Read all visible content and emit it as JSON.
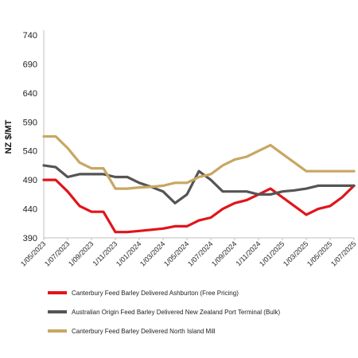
{
  "chart_data": {
    "type": "line",
    "title": "",
    "xlabel": "",
    "ylabel": "NZ $/MT",
    "ylim": [
      390,
      740
    ],
    "yticks": [
      390,
      440,
      490,
      540,
      590,
      640,
      690,
      740
    ],
    "grid": false,
    "legend_position": "bottom",
    "x_tick_labels": [
      "1/05/2023",
      "1/07/2023",
      "1/09/2023",
      "1/11/2023",
      "1/01/2024",
      "1/03/2024",
      "1/05/2024",
      "1/07/2024",
      "1/09/2024",
      "1/11/2024",
      "1/01/2025",
      "1/03/2025",
      "1/05/2025",
      "1/07/2025"
    ],
    "x": [
      "1/05/2023",
      "1/06/2023",
      "1/07/2023",
      "1/08/2023",
      "1/09/2023",
      "1/10/2023",
      "1/11/2023",
      "1/12/2023",
      "1/01/2024",
      "1/02/2024",
      "1/03/2024",
      "1/04/2024",
      "1/05/2024",
      "1/06/2024",
      "1/07/2024",
      "1/08/2024",
      "1/09/2024",
      "1/10/2024",
      "1/11/2024",
      "1/12/2024",
      "1/01/2025",
      "1/02/2025",
      "1/03/2025",
      "1/04/2025",
      "1/05/2025",
      "1/06/2025",
      "1/07/2025"
    ],
    "series": [
      {
        "name": "Canterbury Feed Barley Delivered Ashburton (Free Pricing)",
        "color": "#e0151b",
        "values": [
          490,
          490,
          470,
          445,
          435,
          435,
          400,
          400,
          402,
          404,
          406,
          410,
          410,
          420,
          425,
          440,
          450,
          455,
          465,
          475,
          460,
          445,
          430,
          440,
          445,
          460,
          480
        ]
      },
      {
        "name": "Australian Origin Feed Barley Delivered New Zealand Port Terminal (Bulk)",
        "color": "#555555",
        "values": [
          515,
          512,
          495,
          500,
          500,
          500,
          495,
          495,
          485,
          478,
          470,
          450,
          465,
          505,
          490,
          470,
          470,
          470,
          465,
          465,
          470,
          472,
          475,
          480,
          480,
          480,
          480
        ]
      },
      {
        "name": "Canterbury Feed Barley Delivered North Island Mill",
        "color": "#c8a764",
        "values": [
          565,
          565,
          545,
          520,
          510,
          510,
          475,
          475,
          477,
          478,
          480,
          485,
          485,
          495,
          500,
          515,
          525,
          530,
          540,
          550,
          535,
          520,
          505,
          505,
          505,
          505,
          505
        ]
      }
    ]
  }
}
